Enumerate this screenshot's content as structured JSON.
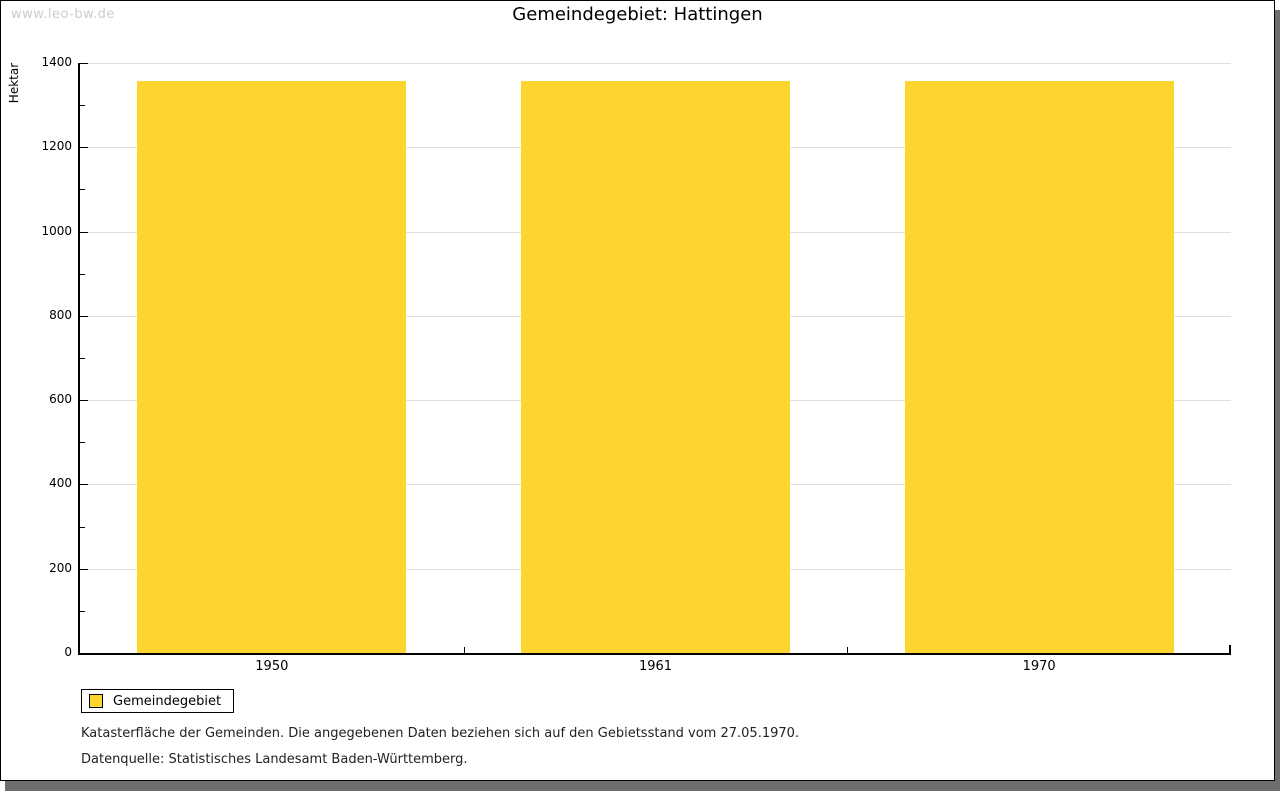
{
  "watermark": "www.leo-bw.de",
  "title": "Gemeindegebiet: Hattingen",
  "legend": {
    "label": "Gemeindegebiet"
  },
  "captions": {
    "line1": "Katasterfläche der Gemeinden. Die angegebenen Daten beziehen sich auf den Gebietsstand vom 27.05.1970.",
    "line2": "Datenquelle: Statistisches Landesamt Baden-Württemberg."
  },
  "chart_data": {
    "type": "bar",
    "title": "Gemeindegebiet: Hattingen",
    "categories": [
      "1950",
      "1961",
      "1970"
    ],
    "series": [
      {
        "name": "Gemeindegebiet",
        "values": [
          1358,
          1358,
          1358
        ]
      }
    ],
    "xlabel": "",
    "ylabel": "Hektar",
    "ylim": [
      0,
      1400
    ],
    "ytick_step": 200,
    "yminor_step": 100,
    "grid": true,
    "legend_position": "bottom-left",
    "unit": "Hektar"
  },
  "colors": {
    "bar": "#fcd62f",
    "grid": "#e0e0e0",
    "axis": "#000000",
    "watermark": "#cccccc",
    "shadow": "#6e6e6e",
    "background": "#ffffff"
  }
}
